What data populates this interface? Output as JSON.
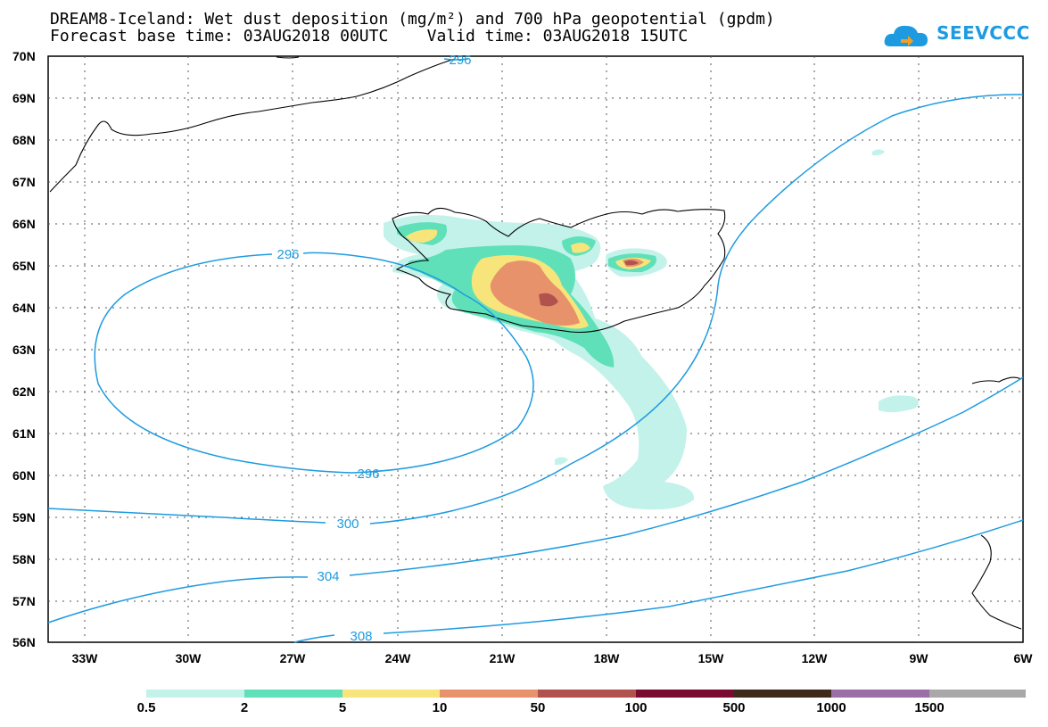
{
  "title": {
    "line1": "DREAM8-Iceland: Wet dust deposition (mg/m²) and 700 hPa geopotential (gpdm)",
    "line2": "Forecast base time: 03AUG2018 00UTC    Valid time: 03AUG2018 15UTC"
  },
  "logo": {
    "text": "SEEVCCC",
    "icon": "cloud-icon",
    "color": "#1e9be0"
  },
  "map": {
    "lat_range": [
      56,
      70
    ],
    "lon_range": [
      -34.5,
      -6
    ],
    "lat_labels": [
      "70N",
      "69N",
      "68N",
      "67N",
      "66N",
      "65N",
      "64N",
      "63N",
      "62N",
      "61N",
      "60N",
      "59N",
      "58N",
      "57N",
      "56N"
    ],
    "lon_labels": [
      "33W",
      "30W",
      "27W",
      "24W",
      "21W",
      "18W",
      "15W",
      "12W",
      "9W",
      "6W"
    ],
    "contour_color": "#1e9be0",
    "contour_labels": [
      "296",
      "296",
      "296",
      "300",
      "304",
      "308"
    ]
  },
  "colorbar": {
    "colors": [
      "#c2f2ea",
      "#5fe0b8",
      "#f7e57c",
      "#e8926c",
      "#b1524f",
      "#7a0a30",
      "#3d2a1a",
      "#9b6fa6",
      "#a8a8a8"
    ],
    "labels": [
      "0.5",
      "2",
      "5",
      "10",
      "50",
      "100",
      "500",
      "1000",
      "1500"
    ]
  }
}
